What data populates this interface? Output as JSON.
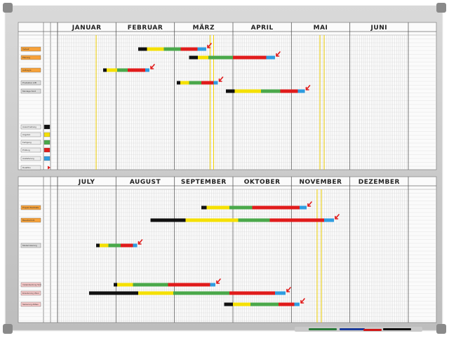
{
  "board": {
    "frame_color": "#c8c8c8",
    "surface_color": "#fafafa",
    "grid_color": "#b9b9b9"
  },
  "panels": [
    {
      "months": [
        "JANUAR",
        "FEBRUAR",
        "MÄRZ",
        "APRIL",
        "MAI",
        "JUNI"
      ],
      "rows": [
        {
          "label": "Vorlauf",
          "color": "orange"
        },
        {
          "label": "Planung",
          "color": "orange"
        },
        {
          "label": "Auftrag E",
          "color": "orange"
        },
        {
          "label": "",
          "color": ""
        },
        {
          "label": "Produktion A/B",
          "color": "grey"
        },
        {
          "label": "Montage Nord",
          "color": "grey"
        }
      ],
      "legend": [
        {
          "label": "Ausschreibung",
          "color": "#111111"
        },
        {
          "label": "Angebot",
          "color": "#f5e000"
        },
        {
          "label": "Fertigung",
          "color": "#4aa84a"
        },
        {
          "label": "Prüfung",
          "color": "#e01b1b"
        },
        {
          "label": "Auslieferung",
          "color": "#2f9de0"
        },
        {
          "label": "Deadline",
          "color": "#e01b1b"
        }
      ],
      "bars": [
        {
          "row": 0,
          "start": 0.23,
          "segments": [
            {
              "c": "#111111",
              "w": 0.025
            },
            {
              "c": "#f5e000",
              "w": 0.048
            },
            {
              "c": "#4aa84a",
              "w": 0.048
            },
            {
              "c": "#e01b1b",
              "w": 0.048
            },
            {
              "c": "#2f9de0",
              "w": 0.025
            }
          ]
        },
        {
          "row": 1,
          "start": 0.375,
          "segments": [
            {
              "c": "#111111",
              "w": 0.025
            },
            {
              "c": "#f5e000",
              "w": 0.03
            },
            {
              "c": "#4aa84a",
              "w": 0.07
            },
            {
              "c": "#e01b1b",
              "w": 0.095
            },
            {
              "c": "#2f9de0",
              "w": 0.025
            }
          ]
        },
        {
          "row": 2,
          "start": 0.13,
          "segments": [
            {
              "c": "#111111",
              "w": 0.01
            },
            {
              "c": "#f5e000",
              "w": 0.03
            },
            {
              "c": "#4aa84a",
              "w": 0.03
            },
            {
              "c": "#e01b1b",
              "w": 0.05
            },
            {
              "c": "#2f9de0",
              "w": 0.012
            }
          ]
        },
        {
          "row": 4,
          "start": 0.34,
          "segments": [
            {
              "c": "#111111",
              "w": 0.01
            },
            {
              "c": "#f5e000",
              "w": 0.025
            },
            {
              "c": "#4aa84a",
              "w": 0.035
            },
            {
              "c": "#e01b1b",
              "w": 0.035
            },
            {
              "c": "#2f9de0",
              "w": 0.012
            }
          ]
        },
        {
          "row": 5,
          "start": 0.48,
          "segments": [
            {
              "c": "#111111",
              "w": 0.025
            },
            {
              "c": "#f5e000",
              "w": 0.075
            },
            {
              "c": "#4aa84a",
              "w": 0.055
            },
            {
              "c": "#e01b1b",
              "w": 0.05
            },
            {
              "c": "#2f9de0",
              "w": 0.02
            }
          ]
        }
      ]
    },
    {
      "months": [
        "JULY",
        "AUGUST",
        "SEPTEMBER",
        "OKTOBER",
        "NOVEMBER",
        "DEZEMBER"
      ],
      "rows": [
        {
          "label": "Projekt Werkhalle",
          "color": "orange"
        },
        {
          "label": "Bauabschnitt",
          "color": "orange"
        },
        {
          "label": "Modernisierung",
          "color": "grey"
        },
        {
          "label": "",
          "color": ""
        },
        {
          "label": "Instandsetzung Süd",
          "color": "pink"
        },
        {
          "label": "Erweiterung West",
          "color": "pink"
        },
        {
          "label": "Sanierung Altbau",
          "color": "pink"
        }
      ],
      "bars": [
        {
          "row": 0,
          "start": 0.41,
          "segments": [
            {
              "c": "#111111",
              "w": 0.015
            },
            {
              "c": "#f5e000",
              "w": 0.065
            },
            {
              "c": "#4aa84a",
              "w": 0.065
            },
            {
              "c": "#e01b1b",
              "w": 0.135
            },
            {
              "c": "#2f9de0",
              "w": 0.02
            }
          ]
        },
        {
          "row": 1,
          "start": 0.265,
          "segments": [
            {
              "c": "#111111",
              "w": 0.1
            },
            {
              "c": "#f5e000",
              "w": 0.15
            },
            {
              "c": "#4aa84a",
              "w": 0.09
            },
            {
              "c": "#e01b1b",
              "w": 0.155
            },
            {
              "c": "#2f9de0",
              "w": 0.028
            }
          ]
        },
        {
          "row": 2,
          "start": 0.11,
          "segments": [
            {
              "c": "#111111",
              "w": 0.01
            },
            {
              "c": "#f5e000",
              "w": 0.025
            },
            {
              "c": "#4aa84a",
              "w": 0.035
            },
            {
              "c": "#e01b1b",
              "w": 0.035
            },
            {
              "c": "#2f9de0",
              "w": 0.012
            }
          ]
        },
        {
          "row": 4,
          "start": 0.16,
          "segments": [
            {
              "c": "#111111",
              "w": 0.01
            },
            {
              "c": "#f5e000",
              "w": 0.045
            },
            {
              "c": "#4aa84a",
              "w": 0.1
            },
            {
              "c": "#e01b1b",
              "w": 0.12
            },
            {
              "c": "#2f9de0",
              "w": 0.015
            }
          ]
        },
        {
          "row": 5,
          "start": 0.09,
          "segments": [
            {
              "c": "#111111",
              "w": 0.14
            },
            {
              "c": "#f5e000",
              "w": 0.1
            },
            {
              "c": "#4aa84a",
              "w": 0.16
            },
            {
              "c": "#e01b1b",
              "w": 0.13
            },
            {
              "c": "#2f9de0",
              "w": 0.03
            }
          ]
        },
        {
          "row": 6,
          "start": 0.475,
          "segments": [
            {
              "c": "#111111",
              "w": 0.025
            },
            {
              "c": "#f5e000",
              "w": 0.05
            },
            {
              "c": "#4aa84a",
              "w": 0.08
            },
            {
              "c": "#e01b1b",
              "w": 0.045
            },
            {
              "c": "#2f9de0",
              "w": 0.015
            }
          ]
        }
      ]
    }
  ],
  "markers": [
    {
      "color": "#2a7a3a"
    },
    {
      "color": "#1a3a9a"
    },
    {
      "color": "#d01818"
    },
    {
      "color": "#111111"
    }
  ]
}
